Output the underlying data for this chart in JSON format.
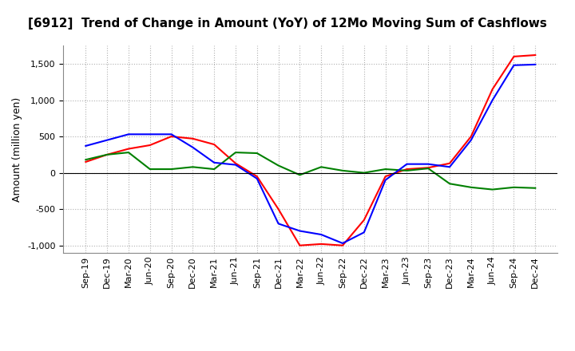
{
  "title": "[6912]  Trend of Change in Amount (YoY) of 12Mo Moving Sum of Cashflows",
  "ylabel": "Amount (million yen)",
  "ylim": [
    -1100,
    1750
  ],
  "yticks": [
    -1000,
    -500,
    0,
    500,
    1000,
    1500
  ],
  "x_labels": [
    "Sep-19",
    "Dec-19",
    "Mar-20",
    "Jun-20",
    "Sep-20",
    "Dec-20",
    "Mar-21",
    "Jun-21",
    "Sep-21",
    "Dec-21",
    "Mar-22",
    "Jun-22",
    "Sep-22",
    "Dec-22",
    "Mar-23",
    "Jun-23",
    "Sep-23",
    "Dec-23",
    "Mar-24",
    "Jun-24",
    "Sep-24",
    "Dec-24"
  ],
  "operating": [
    150,
    250,
    330,
    380,
    500,
    470,
    390,
    130,
    -50,
    -500,
    -1000,
    -980,
    -1000,
    -650,
    -50,
    50,
    70,
    130,
    500,
    1150,
    1600,
    1620
  ],
  "investing": [
    180,
    250,
    280,
    50,
    50,
    80,
    50,
    280,
    270,
    100,
    -30,
    80,
    30,
    0,
    50,
    30,
    60,
    -150,
    -200,
    -230,
    -200,
    -210
  ],
  "free": [
    370,
    450,
    530,
    530,
    530,
    350,
    140,
    110,
    -80,
    -700,
    -800,
    -850,
    -970,
    -820,
    -100,
    120,
    120,
    80,
    450,
    1000,
    1480,
    1490
  ],
  "line_colors": {
    "operating": "#ff0000",
    "investing": "#008000",
    "free": "#0000ff"
  },
  "background_color": "#ffffff",
  "grid_color": "#b0b0b0",
  "title_fontsize": 11,
  "label_fontsize": 9,
  "tick_fontsize": 8
}
